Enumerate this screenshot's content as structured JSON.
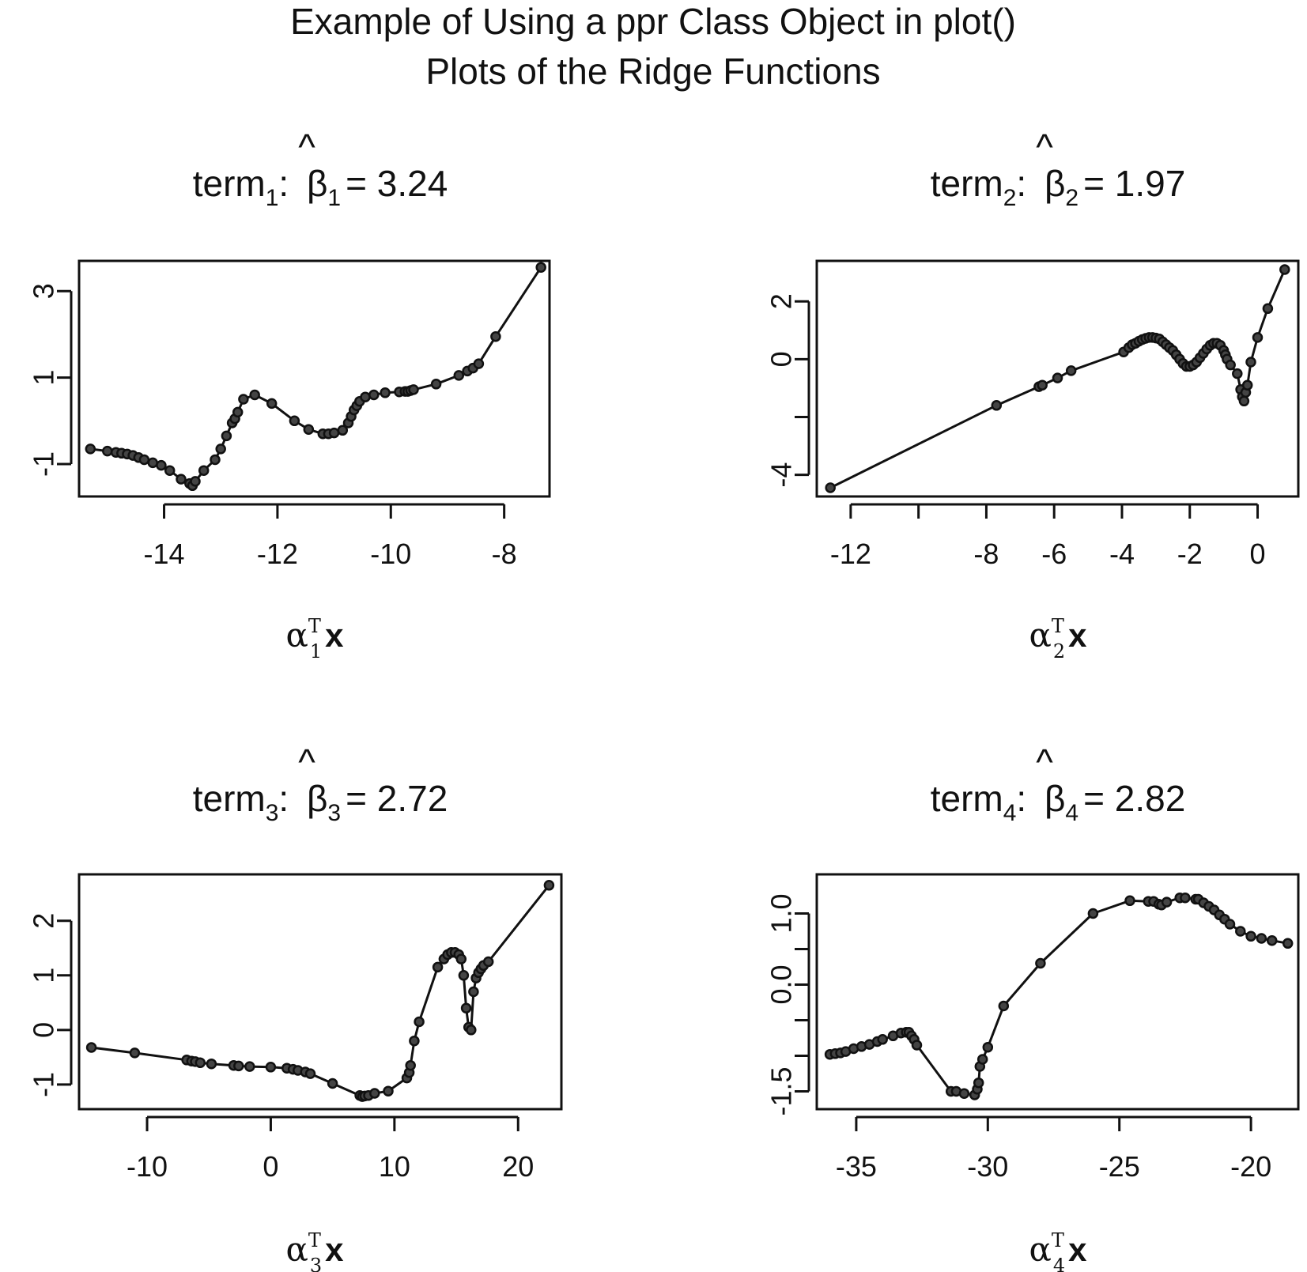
{
  "title_line1": "Example of Using a ppr Class Object in plot()",
  "title_line2": "Plots of the Ridge Functions",
  "chart_data": [
    {
      "type": "line",
      "title": {
        "term_word": "term",
        "term_sub": "1",
        "beta_sym": "β",
        "hat": "^",
        "beta_sub": "1",
        "eq_value": "= 3.24"
      },
      "xlabel": {
        "alpha": "α",
        "sup": "T",
        "sub": "1",
        "bold": "x"
      },
      "xlim": [
        -15.5,
        -7.2
      ],
      "ylim": [
        -1.75,
        3.7
      ],
      "xticks": [
        -14,
        -12,
        -10,
        -8
      ],
      "xtick_labels": [
        "-14",
        "-12",
        "-10",
        "-8"
      ],
      "yticks": [
        -1,
        1,
        3
      ],
      "ytick_labels": [
        "-1",
        "1",
        "3"
      ],
      "x": [
        -15.3,
        -15.0,
        -14.85,
        -14.75,
        -14.65,
        -14.55,
        -14.45,
        -14.35,
        -14.2,
        -14.05,
        -13.9,
        -13.7,
        -13.55,
        -13.5,
        -13.45,
        -13.3,
        -13.1,
        -13.0,
        -12.9,
        -12.8,
        -12.75,
        -12.7,
        -12.6,
        -12.4,
        -12.1,
        -11.7,
        -11.45,
        -11.2,
        -11.1,
        -11.0,
        -10.85,
        -10.75,
        -10.7,
        -10.65,
        -10.6,
        -10.55,
        -10.45,
        -10.3,
        -10.1,
        -9.85,
        -9.75,
        -9.7,
        -9.65,
        -9.6,
        -9.2,
        -8.8,
        -8.65,
        -8.55,
        -8.45,
        -8.15,
        -7.35
      ],
      "y": [
        -0.65,
        -0.7,
        -0.73,
        -0.75,
        -0.77,
        -0.8,
        -0.85,
        -0.9,
        -0.97,
        -1.03,
        -1.15,
        -1.35,
        -1.45,
        -1.5,
        -1.4,
        -1.15,
        -0.9,
        -0.65,
        -0.35,
        -0.05,
        0.05,
        0.2,
        0.5,
        0.6,
        0.4,
        0.0,
        -0.2,
        -0.3,
        -0.3,
        -0.28,
        -0.22,
        -0.05,
        0.1,
        0.25,
        0.35,
        0.45,
        0.55,
        0.6,
        0.65,
        0.67,
        0.68,
        0.68,
        0.7,
        0.72,
        0.85,
        1.05,
        1.15,
        1.22,
        1.32,
        1.95,
        3.55
      ]
    },
    {
      "type": "line",
      "title": {
        "term_word": "term",
        "term_sub": "2",
        "beta_sym": "β",
        "hat": "^",
        "beta_sub": "2",
        "eq_value": "= 1.97"
      },
      "xlabel": {
        "alpha": "α",
        "sup": "T",
        "sub": "2",
        "bold": "x"
      },
      "xlim": [
        -13.0,
        1.2
      ],
      "ylim": [
        -4.75,
        3.4
      ],
      "xticks": [
        -12,
        -10,
        -8,
        -6,
        -4,
        -2,
        0
      ],
      "xtick_labels": [
        "-12",
        "",
        "-8",
        "-6",
        "-4",
        "-2",
        "0"
      ],
      "yticks": [
        -4,
        -2,
        0,
        2
      ],
      "ytick_labels": [
        "-4",
        "",
        "0",
        "2"
      ],
      "x": [
        -12.6,
        -7.7,
        -6.45,
        -6.35,
        -5.9,
        -5.5,
        -3.95,
        -3.8,
        -3.7,
        -3.6,
        -3.5,
        -3.4,
        -3.3,
        -3.2,
        -3.1,
        -3.0,
        -2.9,
        -2.8,
        -2.7,
        -2.6,
        -2.5,
        -2.4,
        -2.3,
        -2.2,
        -2.1,
        -2.0,
        -1.9,
        -1.8,
        -1.7,
        -1.6,
        -1.5,
        -1.4,
        -1.3,
        -1.2,
        -1.1,
        -1.0,
        -0.95,
        -0.9,
        -0.8,
        -0.6,
        -0.5,
        -0.45,
        -0.4,
        -0.35,
        -0.3,
        -0.2,
        0.0,
        0.3,
        0.8
      ],
      "y": [
        -4.45,
        -1.6,
        -0.95,
        -0.9,
        -0.65,
        -0.4,
        0.25,
        0.4,
        0.5,
        0.55,
        0.62,
        0.68,
        0.72,
        0.75,
        0.75,
        0.73,
        0.7,
        0.6,
        0.5,
        0.4,
        0.3,
        0.15,
        0.0,
        -0.15,
        -0.25,
        -0.25,
        -0.2,
        -0.1,
        0.05,
        0.2,
        0.35,
        0.48,
        0.55,
        0.55,
        0.48,
        0.3,
        0.15,
        0.0,
        -0.2,
        -0.5,
        -1.05,
        -1.3,
        -1.45,
        -1.15,
        -0.9,
        -0.1,
        0.75,
        1.75,
        3.1
      ]
    },
    {
      "type": "line",
      "title": {
        "term_word": "term",
        "term_sub": "3",
        "beta_sym": "β",
        "hat": "^",
        "beta_sub": "3",
        "eq_value": "= 2.72"
      },
      "xlabel": {
        "alpha": "α",
        "sup": "T",
        "sub": "3",
        "bold": "x"
      },
      "xlim": [
        -15.5,
        23.5
      ],
      "ylim": [
        -1.45,
        2.85
      ],
      "xticks": [
        -10,
        0,
        10,
        20
      ],
      "xtick_labels": [
        "-10",
        "0",
        "10",
        "20"
      ],
      "yticks": [
        -1,
        0,
        1,
        2
      ],
      "ytick_labels": [
        "-1",
        "0",
        "1",
        "2"
      ],
      "x": [
        -14.5,
        -11.0,
        -6.8,
        -6.4,
        -6.1,
        -5.7,
        -4.8,
        -3.0,
        -2.6,
        -1.7,
        0.0,
        1.3,
        1.8,
        2.2,
        2.8,
        3.2,
        5.0,
        7.2,
        7.4,
        7.6,
        7.9,
        8.4,
        9.5,
        11.0,
        11.2,
        11.3,
        11.6,
        12.0,
        13.5,
        14.0,
        14.3,
        14.6,
        14.9,
        15.2,
        15.4,
        15.6,
        15.8,
        16.0,
        16.2,
        16.4,
        16.6,
        16.8,
        17.0,
        17.2,
        17.6,
        22.5
      ],
      "y": [
        -0.32,
        -0.42,
        -0.55,
        -0.57,
        -0.58,
        -0.6,
        -0.62,
        -0.65,
        -0.66,
        -0.67,
        -0.68,
        -0.7,
        -0.72,
        -0.74,
        -0.77,
        -0.8,
        -0.98,
        -1.2,
        -1.22,
        -1.21,
        -1.2,
        -1.16,
        -1.12,
        -0.88,
        -0.78,
        -0.65,
        -0.2,
        0.15,
        1.15,
        1.3,
        1.38,
        1.42,
        1.42,
        1.38,
        1.3,
        1.0,
        0.4,
        0.05,
        0.0,
        0.7,
        0.95,
        1.05,
        1.12,
        1.18,
        1.25,
        2.65
      ]
    },
    {
      "type": "line",
      "title": {
        "term_word": "term",
        "term_sub": "4",
        "beta_sym": "β",
        "hat": "^",
        "beta_sub": "4",
        "eq_value": "= 2.82"
      },
      "xlabel": {
        "alpha": "α",
        "sup": "T",
        "sub": "4",
        "bold": "x"
      },
      "xlim": [
        -36.5,
        -18.2
      ],
      "ylim": [
        -1.75,
        1.55
      ],
      "xticks": [
        -35,
        -30,
        -25,
        -20
      ],
      "xtick_labels": [
        "-35",
        "-30",
        "-25",
        "-20"
      ],
      "yticks": [
        -1.5,
        -1.0,
        -0.5,
        0.0,
        0.5,
        1.0
      ],
      "ytick_labels": [
        "-1.5",
        "",
        "",
        "0.0",
        "",
        "1.0"
      ],
      "x": [
        -36.0,
        -35.8,
        -35.6,
        -35.4,
        -35.1,
        -34.8,
        -34.5,
        -34.2,
        -34.0,
        -33.6,
        -33.3,
        -33.1,
        -33.0,
        -32.9,
        -32.8,
        -32.7,
        -31.4,
        -31.2,
        -30.9,
        -30.5,
        -30.4,
        -30.35,
        -30.3,
        -30.2,
        -30.0,
        -29.4,
        -28.0,
        -26.0,
        -24.6,
        -23.9,
        -23.7,
        -23.5,
        -23.4,
        -23.2,
        -22.7,
        -22.5,
        -22.1,
        -22.0,
        -21.8,
        -21.6,
        -21.4,
        -21.2,
        -21.0,
        -20.8,
        -20.4,
        -20.0,
        -19.6,
        -19.2,
        -18.6
      ],
      "y": [
        -0.98,
        -0.97,
        -0.96,
        -0.94,
        -0.9,
        -0.87,
        -0.84,
        -0.8,
        -0.77,
        -0.72,
        -0.68,
        -0.67,
        -0.67,
        -0.72,
        -0.77,
        -0.85,
        -1.5,
        -1.5,
        -1.53,
        -1.55,
        -1.47,
        -1.38,
        -1.15,
        -1.05,
        -0.88,
        -0.3,
        0.3,
        1.0,
        1.18,
        1.17,
        1.17,
        1.13,
        1.12,
        1.16,
        1.22,
        1.22,
        1.2,
        1.2,
        1.15,
        1.1,
        1.05,
        0.98,
        0.92,
        0.85,
        0.75,
        0.68,
        0.65,
        0.62,
        0.58
      ]
    }
  ]
}
